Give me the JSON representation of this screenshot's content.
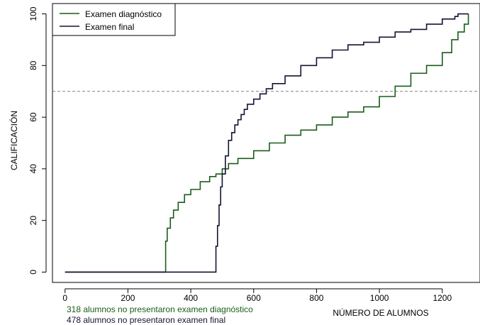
{
  "chart_data": {
    "type": "line",
    "title": "",
    "xlabel": "NÚMERO DE ALUMNOS",
    "ylabel": "CALIFICACIÓN",
    "xlim": [
      -40,
      1320
    ],
    "ylim": [
      -4,
      104
    ],
    "x_ticks": [
      0,
      200,
      400,
      600,
      800,
      1000,
      1200
    ],
    "y_ticks": [
      0,
      20,
      40,
      60,
      80,
      100
    ],
    "legend_position": "top-left",
    "reference_line": {
      "y": 70,
      "style": "dashed",
      "color": "#808080"
    },
    "series": [
      {
        "name": "Examen diagnóstico",
        "color": "#1a5c1a",
        "x": [
          0,
          317,
          320,
          325,
          335,
          345,
          360,
          380,
          400,
          430,
          460,
          480,
          500,
          520,
          550,
          600,
          650,
          700,
          750,
          800,
          850,
          900,
          950,
          1000,
          1050,
          1100,
          1150,
          1200,
          1230,
          1250,
          1270,
          1283
        ],
        "y": [
          0,
          0,
          12,
          17,
          21,
          24,
          27,
          30,
          32,
          35,
          37,
          38,
          40,
          42,
          44,
          47,
          50,
          53,
          55,
          57,
          60,
          62,
          64,
          68,
          72,
          77,
          80,
          85,
          90,
          93,
          96,
          100
        ]
      },
      {
        "name": "Examen final",
        "color": "#141433",
        "x": [
          0,
          477,
          480,
          485,
          490,
          495,
          500,
          510,
          520,
          530,
          540,
          550,
          560,
          570,
          580,
          600,
          620,
          640,
          660,
          700,
          750,
          800,
          850,
          900,
          950,
          1000,
          1050,
          1100,
          1150,
          1200,
          1240,
          1250,
          1283
        ],
        "y": [
          0,
          0,
          10,
          18,
          26,
          33,
          38,
          45,
          51,
          54,
          57,
          59,
          61,
          63,
          65,
          67,
          69,
          71,
          73,
          76,
          80,
          83,
          86,
          88,
          89,
          91,
          93,
          94,
          96,
          98,
          99,
          100,
          100
        ]
      }
    ]
  },
  "notes": [
    {
      "text": "318  alumnos no presentaron examen diagnóstico",
      "color": "#1a5c1a"
    },
    {
      "text": "478  alumnos no presentaron examen final",
      "color": "#141433"
    }
  ]
}
